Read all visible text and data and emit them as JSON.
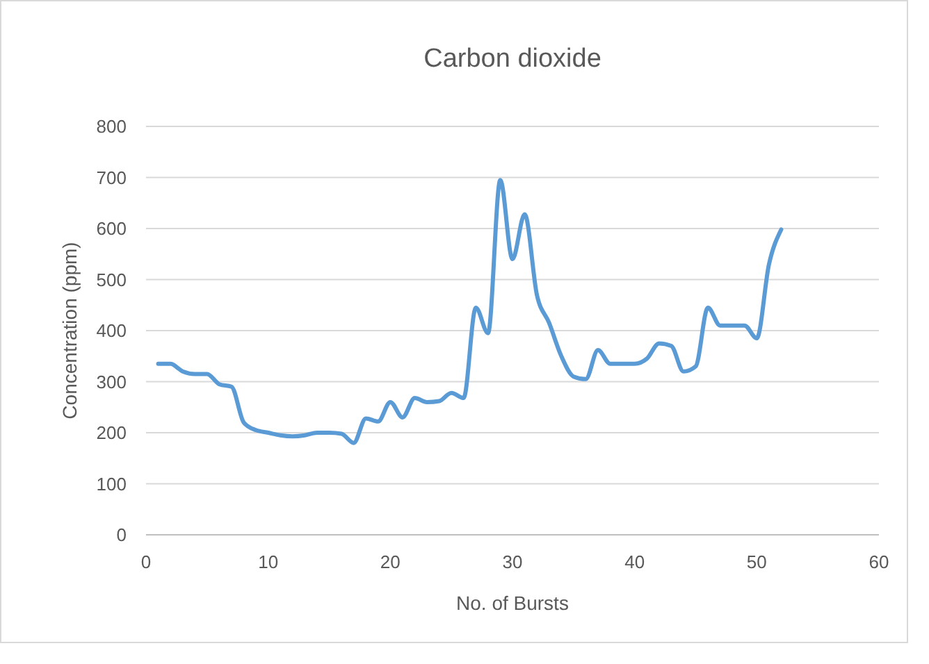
{
  "chart_data": {
    "type": "line",
    "title": "Carbon dioxide",
    "xlabel": "No. of Bursts",
    "ylabel": "Concentration (ppm)",
    "x": [
      1,
      2,
      3,
      4,
      5,
      6,
      7,
      8,
      9,
      10,
      11,
      12,
      13,
      14,
      15,
      16,
      17,
      18,
      19,
      20,
      21,
      22,
      23,
      24,
      25,
      26,
      27,
      28,
      29,
      30,
      31,
      32,
      33,
      34,
      35,
      36,
      37,
      38,
      39,
      40,
      41,
      42,
      43,
      44,
      45,
      46,
      47,
      48,
      49,
      50,
      51,
      52
    ],
    "series": [
      {
        "color": "#5b9bd5",
        "values": [
          335,
          335,
          320,
          315,
          315,
          295,
          290,
          220,
          205,
          200,
          195,
          193,
          195,
          200,
          200,
          198,
          180,
          228,
          222,
          260,
          230,
          268,
          260,
          262,
          278,
          268,
          445,
          395,
          695,
          540,
          628,
          470,
          415,
          350,
          310,
          305,
          362,
          335,
          335,
          335,
          345,
          375,
          370,
          320,
          330,
          445,
          410,
          410,
          410,
          385,
          530,
          598
        ]
      }
    ],
    "xlim": [
      0,
      60
    ],
    "xticks": [
      0,
      10,
      20,
      30,
      40,
      50,
      60
    ],
    "ylim": [
      0,
      800
    ],
    "yticks": [
      0,
      100,
      200,
      300,
      400,
      500,
      600,
      700,
      800
    ],
    "grid": "y",
    "marker": "none",
    "line_style": "solid"
  }
}
